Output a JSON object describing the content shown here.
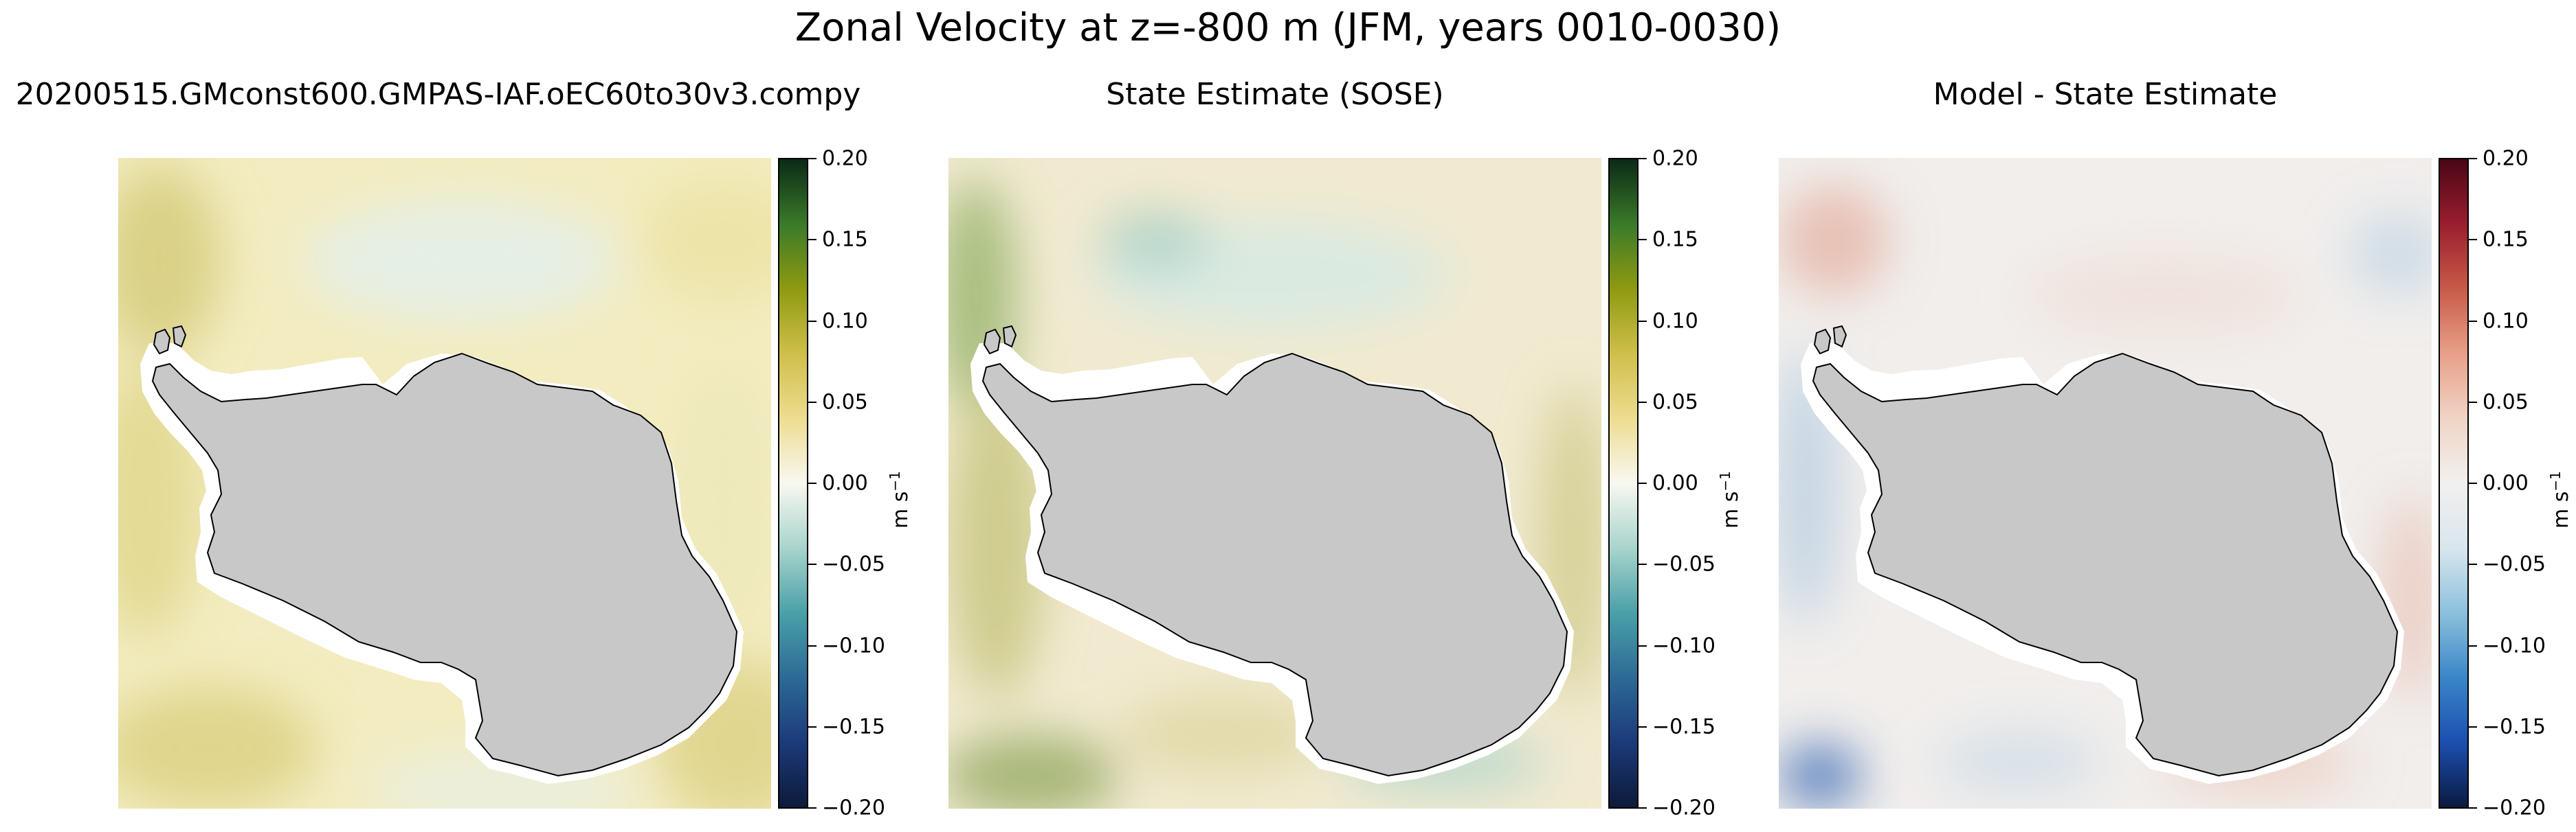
{
  "figure_title": "Zonal Velocity at z=-800 m (JFM, years 0010-0030)",
  "chart_data": [
    {
      "type": "heatmap",
      "title": "20200515.GMconst600.GMPAS-IAF.oEC60to30v3.compy",
      "projection": "south polar stereographic, Antarctica centered",
      "colormap": "gist_earth-like (dark blue - teal - white - yellow - green)",
      "colorbar": {
        "label": "m s",
        "label_exp": "−1",
        "range": [
          -0.2,
          0.2
        ],
        "ticks": [
          "0.20",
          "0.15",
          "0.10",
          "0.05",
          "0.00",
          "−0.05",
          "−0.10",
          "−0.15",
          "−0.20"
        ],
        "colors": [
          "#0d1a3a",
          "#1c3a7a",
          "#2c6a96",
          "#4aa0a8",
          "#a8d4cc",
          "#f8f8f0",
          "#eedc90",
          "#cfbf4a",
          "#8e9a10",
          "#3a7a2a",
          "#0a2a16"
        ]
      }
    },
    {
      "type": "heatmap",
      "title": "State Estimate (SOSE)",
      "projection": "south polar stereographic, Antarctica centered",
      "colormap": "gist_earth-like (dark blue - teal - white - yellow - green)",
      "colorbar": {
        "label": "m s",
        "label_exp": "−1",
        "range": [
          -0.2,
          0.2
        ],
        "ticks": [
          "0.20",
          "0.15",
          "0.10",
          "0.05",
          "0.00",
          "−0.05",
          "−0.10",
          "−0.15",
          "−0.20"
        ],
        "colors": [
          "#0d1a3a",
          "#1c3a7a",
          "#2c6a96",
          "#4aa0a8",
          "#a8d4cc",
          "#f8f8f0",
          "#eedc90",
          "#cfbf4a",
          "#8e9a10",
          "#3a7a2a",
          "#0a2a16"
        ]
      }
    },
    {
      "type": "heatmap",
      "title": "Model - State Estimate",
      "projection": "south polar stereographic, Antarctica centered",
      "colormap": "RdBu_r-like (dark blue - white - dark red)",
      "colorbar": {
        "label": "m s",
        "label_exp": "−1",
        "range": [
          -0.2,
          0.2
        ],
        "ticks": [
          "0.20",
          "0.15",
          "0.10",
          "0.05",
          "0.00",
          "−0.05",
          "−0.10",
          "−0.15",
          "−0.20"
        ],
        "colors": [
          "#0a1a40",
          "#1c4fb0",
          "#3a86c8",
          "#8cc0dc",
          "#d8e6ee",
          "#f2f0ee",
          "#f0d4c6",
          "#e8a088",
          "#c85a48",
          "#9a1e2e",
          "#4a0616"
        ]
      }
    }
  ],
  "colors": {
    "land": "#c8c8c8",
    "land_outline": "#000000",
    "ocean_neutral_1": "#f4efc8",
    "ocean_neutral_2": "#eef6ef",
    "ocean_neutral_3": "#f1ecea"
  }
}
